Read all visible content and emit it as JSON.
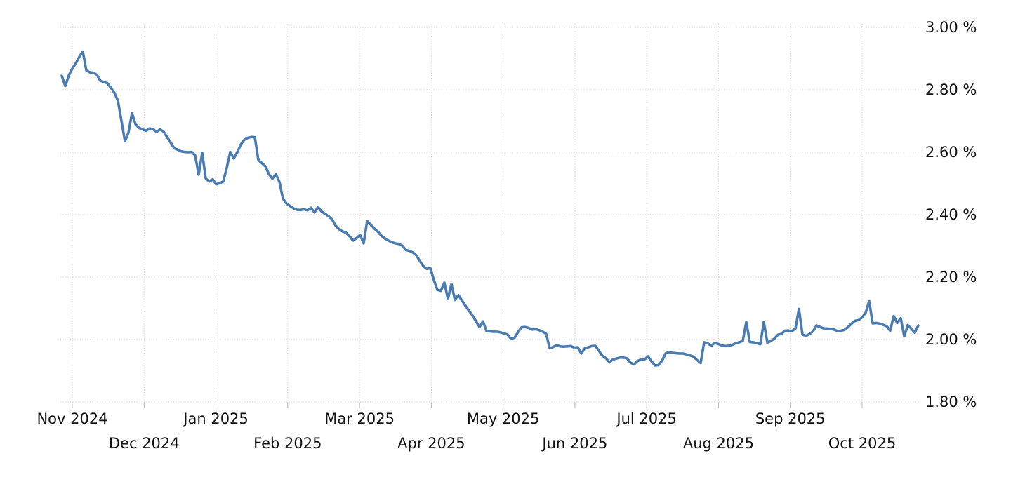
{
  "page": {
    "background_color": "#ffffff",
    "title": "",
    "description": "line chart of a percentage rate, Nov 2024 - Oct 2025"
  },
  "chart_data": {
    "type": "line",
    "title": "",
    "xlabel": "",
    "ylabel": "",
    "unit": "%",
    "legend": "none",
    "grid": "dotted",
    "line_color": "#4a7cb2",
    "grid_color": "#cccccc",
    "axis_tick_color": "#b5b5b5",
    "label_color": "#111111",
    "y_axis": {
      "side": "right",
      "min": 1.8,
      "max": 3.0,
      "ticks": [
        {
          "label": "3.00 %",
          "value": 3.0
        },
        {
          "label": "2.80 %",
          "value": 2.8
        },
        {
          "label": "2.60 %",
          "value": 2.6
        },
        {
          "label": "2.40 %",
          "value": 2.4
        },
        {
          "label": "2.20 %",
          "value": 2.2
        },
        {
          "label": "2.00 %",
          "value": 2.0
        },
        {
          "label": "1.80 %",
          "value": 1.8
        }
      ]
    },
    "x_axis": {
      "months": [
        {
          "label": "Nov 2024",
          "row": 1
        },
        {
          "label": "Dec 2024",
          "row": 2
        },
        {
          "label": "Jan 2025",
          "row": 1
        },
        {
          "label": "Feb 2025",
          "row": 2
        },
        {
          "label": "Mar 2025",
          "row": 1
        },
        {
          "label": "Apr 2025",
          "row": 2
        },
        {
          "label": "May 2025",
          "row": 1
        },
        {
          "label": "Jun 2025",
          "row": 2
        },
        {
          "label": "Jul 2025",
          "row": 1
        },
        {
          "label": "Aug 2025",
          "row": 2
        },
        {
          "label": "Sep 2025",
          "row": 1
        },
        {
          "label": "Oct 2025",
          "row": 2
        }
      ],
      "start_approx": "2024-10-28",
      "end_approx": "2025-10-24"
    },
    "series": [
      {
        "name": "rate",
        "sampling": "evenly-spaced over x range",
        "values": [
          2.845,
          2.812,
          2.846,
          2.868,
          2.885,
          2.906,
          2.922,
          2.862,
          2.856,
          2.855,
          2.848,
          2.829,
          2.825,
          2.821,
          2.806,
          2.79,
          2.765,
          2.7,
          2.635,
          2.663,
          2.725,
          2.69,
          2.678,
          2.673,
          2.669,
          2.676,
          2.674,
          2.665,
          2.673,
          2.666,
          2.648,
          2.632,
          2.613,
          2.608,
          2.603,
          2.601,
          2.6,
          2.601,
          2.59,
          2.528,
          2.598,
          2.516,
          2.506,
          2.513,
          2.497,
          2.501,
          2.506,
          2.55,
          2.601,
          2.58,
          2.6,
          2.625,
          2.64,
          2.646,
          2.649,
          2.648,
          2.575,
          2.565,
          2.555,
          2.53,
          2.515,
          2.53,
          2.505,
          2.452,
          2.436,
          2.428,
          2.42,
          2.416,
          2.415,
          2.417,
          2.414,
          2.422,
          2.407,
          2.425,
          2.41,
          2.403,
          2.395,
          2.385,
          2.365,
          2.353,
          2.346,
          2.342,
          2.33,
          2.317,
          2.325,
          2.335,
          2.308,
          2.38,
          2.368,
          2.356,
          2.346,
          2.333,
          2.324,
          2.317,
          2.312,
          2.308,
          2.306,
          2.301,
          2.287,
          2.284,
          2.279,
          2.27,
          2.252,
          2.235,
          2.226,
          2.229,
          2.19,
          2.159,
          2.156,
          2.182,
          2.13,
          2.178,
          2.127,
          2.142,
          2.125,
          2.108,
          2.092,
          2.077,
          2.058,
          2.04,
          2.058,
          2.027,
          2.026,
          2.025,
          2.025,
          2.023,
          2.019,
          2.016,
          2.002,
          2.006,
          2.024,
          2.039,
          2.04,
          2.037,
          2.032,
          2.033,
          2.03,
          2.025,
          2.018,
          1.972,
          1.976,
          1.982,
          1.978,
          1.977,
          1.978,
          1.979,
          1.974,
          1.975,
          1.955,
          1.972,
          1.975,
          1.979,
          1.98,
          1.964,
          1.948,
          1.94,
          1.927,
          1.936,
          1.939,
          1.942,
          1.942,
          1.94,
          1.926,
          1.92,
          1.931,
          1.936,
          1.936,
          1.946,
          1.93,
          1.917,
          1.918,
          1.932,
          1.955,
          1.96,
          1.957,
          1.956,
          1.955,
          1.955,
          1.952,
          1.949,
          1.945,
          1.934,
          1.925,
          1.991,
          1.988,
          1.98,
          1.989,
          1.986,
          1.981,
          1.979,
          1.98,
          1.983,
          1.988,
          1.991,
          1.996,
          2.056,
          1.992,
          1.991,
          1.989,
          1.985,
          2.056,
          1.99,
          1.995,
          2.003,
          2.015,
          2.018,
          2.028,
          2.029,
          2.027,
          2.035,
          2.098,
          2.016,
          2.012,
          2.017,
          2.026,
          2.045,
          2.04,
          2.036,
          2.035,
          2.034,
          2.032,
          2.027,
          2.028,
          2.031,
          2.04,
          2.051,
          2.06,
          2.062,
          2.071,
          2.085,
          2.123,
          2.052,
          2.053,
          2.051,
          2.047,
          2.043,
          2.028,
          2.075,
          2.053,
          2.068,
          2.01,
          2.046,
          2.035,
          2.022,
          2.045
        ]
      }
    ]
  }
}
